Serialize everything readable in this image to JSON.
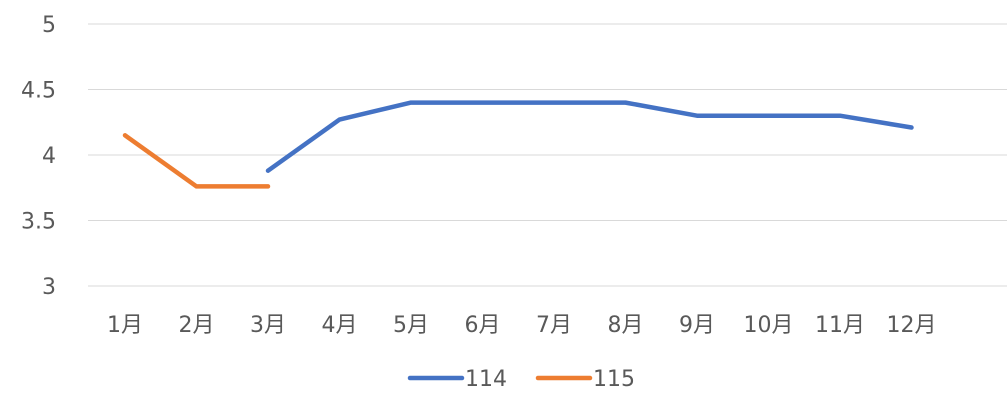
{
  "chart_data": {
    "type": "line",
    "categories": [
      "1月",
      "2月",
      "3月",
      "4月",
      "5月",
      "6月",
      "7月",
      "8月",
      "9月",
      "10月",
      "11月",
      "12月"
    ],
    "series": [
      {
        "name": "114",
        "color": "#4472c4",
        "values": [
          null,
          null,
          3.88,
          4.27,
          4.4,
          4.4,
          4.4,
          4.4,
          4.3,
          4.3,
          4.3,
          4.21
        ]
      },
      {
        "name": "115",
        "color": "#ed7d31",
        "values": [
          4.15,
          3.76,
          3.76,
          null,
          null,
          null,
          null,
          null,
          null,
          null,
          null,
          null
        ]
      }
    ],
    "ylim": [
      3,
      5
    ],
    "yticks": [
      "3",
      "3.5",
      "4",
      "4.5",
      "5"
    ],
    "ytick_values": [
      3,
      3.5,
      4,
      4.5,
      5
    ],
    "grid": true,
    "legend_position": "bottom"
  }
}
